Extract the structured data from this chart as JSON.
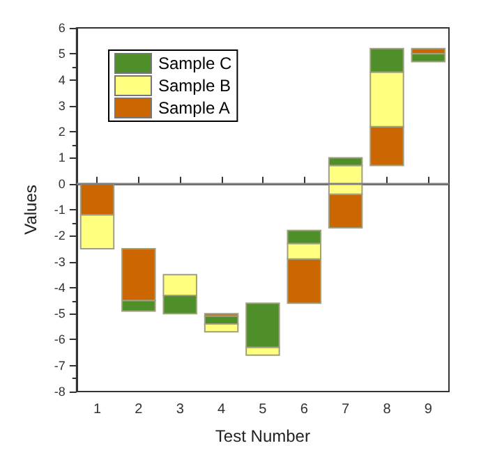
{
  "chart_data": {
    "type": "bar",
    "xlabel": "Test Number",
    "ylabel": "Values",
    "categories": [
      "1",
      "2",
      "3",
      "4",
      "5",
      "6",
      "7",
      "8",
      "9"
    ],
    "series": [
      {
        "name": "Sample A",
        "color": "#cc6600",
        "base": [
          -1.2,
          -4.5,
          null,
          -5.1,
          null,
          -4.6,
          -1.7,
          0.7,
          5.0
        ],
        "values": [
          1.2,
          2.0,
          null,
          0.1,
          null,
          1.7,
          1.3,
          1.5,
          0.2
        ]
      },
      {
        "name": "Sample B",
        "color": "#ffff80",
        "base": [
          -2.5,
          null,
          -4.3,
          -5.7,
          -6.6,
          -2.9,
          -0.4,
          2.2,
          null
        ],
        "values": [
          1.3,
          null,
          0.8,
          0.3,
          0.3,
          0.6,
          1.1,
          2.1,
          null
        ]
      },
      {
        "name": "Sample C",
        "color": "#4e8f2a",
        "base": [
          null,
          -4.9,
          -5.0,
          -5.4,
          -6.3,
          -2.3,
          0.7,
          4.3,
          4.7
        ],
        "values": [
          null,
          0.4,
          0.7,
          0.3,
          1.7,
          0.5,
          0.3,
          0.9,
          0.3
        ]
      }
    ],
    "ylim": [
      -8,
      6
    ],
    "yticks": [
      -8,
      -7,
      -6,
      -5,
      -4,
      -3,
      -2,
      -1,
      0,
      1,
      2,
      3,
      4,
      5,
      6
    ],
    "ref_lines": [
      {
        "axis": "y",
        "value": 0,
        "color": "#808080"
      }
    ],
    "grid": false,
    "legend": "top left"
  }
}
